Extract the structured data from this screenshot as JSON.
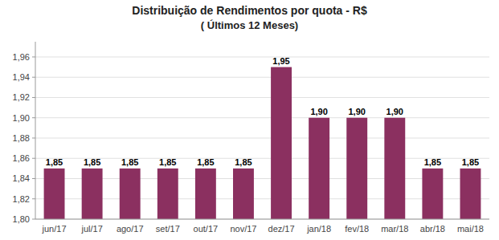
{
  "chart_data": {
    "type": "bar",
    "title": "Distribuição de Rendimentos por quota - R$",
    "subtitle": "( Últimos 12 Meses)",
    "categories": [
      "jun/17",
      "jul/17",
      "ago/17",
      "set/17",
      "out/17",
      "nov/17",
      "dez/17",
      "jan/18",
      "fev/18",
      "mar/18",
      "abr/18",
      "mai/18"
    ],
    "values": [
      1.85,
      1.85,
      1.85,
      1.85,
      1.85,
      1.85,
      1.95,
      1.9,
      1.9,
      1.9,
      1.85,
      1.85
    ],
    "value_labels": [
      "1,85",
      "1,85",
      "1,85",
      "1,85",
      "1,85",
      "1,85",
      "1,95",
      "1,90",
      "1,90",
      "1,90",
      "1,85",
      "1,85"
    ],
    "color": "#8B3060",
    "ylim": [
      1.8,
      1.975
    ],
    "yticks": [
      {
        "value": 1.8,
        "label": "1,80"
      },
      {
        "value": 1.82,
        "label": "1,82"
      },
      {
        "value": 1.84,
        "label": "1,84"
      },
      {
        "value": 1.86,
        "label": "1,86"
      },
      {
        "value": 1.88,
        "label": "1,88"
      },
      {
        "value": 1.9,
        "label": "1,90"
      },
      {
        "value": 1.92,
        "label": "1,92"
      },
      {
        "value": 1.94,
        "label": "1,94"
      },
      {
        "value": 1.96,
        "label": "1,96"
      }
    ],
    "grid": true,
    "data_labels": true
  }
}
